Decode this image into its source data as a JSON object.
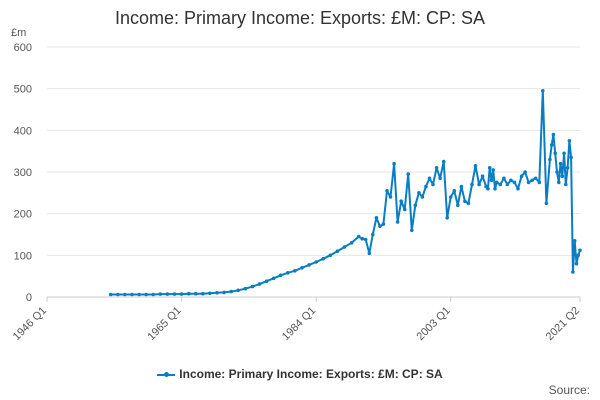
{
  "chart_data": {
    "type": "line",
    "title": "Income: Primary Income: Exports: £M: CP: SA",
    "ylabel": "£m",
    "ylim": [
      0,
      600
    ],
    "yticks": [
      0,
      100,
      200,
      300,
      400,
      500,
      600
    ],
    "xlim": [
      1946.0,
      2021.25
    ],
    "xticks": [
      {
        "value": 1946.0,
        "label": "1946 Q1"
      },
      {
        "value": 1965.0,
        "label": "1965 Q1"
      },
      {
        "value": 1984.0,
        "label": "1984 Q1"
      },
      {
        "value": 2003.0,
        "label": "2003 Q1"
      },
      {
        "value": 2021.25,
        "label": "2021 Q2"
      }
    ],
    "grid": true,
    "legend_position": "bottom",
    "series": [
      {
        "name": "Income: Primary Income: Exports: £M: CP: SA",
        "color": "#0a7ec2",
        "x": [
          1955.0,
          1956.0,
          1957.0,
          1958.0,
          1959.0,
          1960.0,
          1961.0,
          1962.0,
          1963.0,
          1964.0,
          1965.0,
          1966.0,
          1967.0,
          1968.0,
          1969.0,
          1970.0,
          1971.0,
          1972.0,
          1973.0,
          1974.0,
          1975.0,
          1976.0,
          1977.0,
          1978.0,
          1979.0,
          1980.0,
          1981.0,
          1982.0,
          1983.0,
          1984.0,
          1985.0,
          1986.0,
          1987.0,
          1988.0,
          1989.0,
          1990.0,
          1990.5,
          1991.0,
          1991.5,
          1992.0,
          1992.5,
          1993.0,
          1993.5,
          1994.0,
          1994.5,
          1995.0,
          1995.5,
          1996.0,
          1996.5,
          1997.0,
          1997.5,
          1998.0,
          1998.5,
          1999.0,
          1999.5,
          2000.0,
          2000.5,
          2001.0,
          2001.5,
          2002.0,
          2002.5,
          2003.0,
          2003.5,
          2004.0,
          2004.5,
          2005.0,
          2005.5,
          2006.0,
          2006.5,
          2007.0,
          2007.5,
          2008.0,
          2008.25,
          2008.5,
          2008.75,
          2009.0,
          2009.25,
          2009.5,
          2010.0,
          2010.5,
          2011.0,
          2011.5,
          2012.0,
          2012.5,
          2013.0,
          2013.5,
          2014.0,
          2014.5,
          2015.0,
          2015.5,
          2016.0,
          2016.5,
          2017.0,
          2017.25,
          2017.5,
          2017.75,
          2018.0,
          2018.25,
          2018.5,
          2018.75,
          2019.0,
          2019.25,
          2019.5,
          2019.75,
          2020.0,
          2020.25,
          2020.5,
          2020.75,
          2021.0,
          2021.25
        ],
        "values": [
          6,
          6,
          6,
          6,
          6,
          6,
          6,
          7,
          7,
          7,
          7,
          8,
          8,
          8,
          9,
          10,
          11,
          13,
          16,
          20,
          25,
          31,
          38,
          45,
          52,
          58,
          63,
          70,
          77,
          84,
          92,
          100,
          110,
          120,
          130,
          145,
          140,
          138,
          105,
          150,
          190,
          170,
          175,
          255,
          240,
          320,
          180,
          230,
          210,
          295,
          160,
          220,
          250,
          240,
          265,
          285,
          270,
          310,
          285,
          325,
          190,
          240,
          255,
          220,
          265,
          230,
          225,
          270,
          315,
          270,
          290,
          265,
          260,
          310,
          280,
          305,
          260,
          275,
          270,
          285,
          270,
          280,
          275,
          260,
          290,
          300,
          275,
          280,
          285,
          275,
          495,
          225,
          330,
          365,
          390,
          345,
          300,
          275,
          320,
          290,
          345,
          270,
          310,
          375,
          335,
          60,
          135,
          80,
          100,
          112
        ]
      }
    ]
  },
  "source_label": "Source:"
}
